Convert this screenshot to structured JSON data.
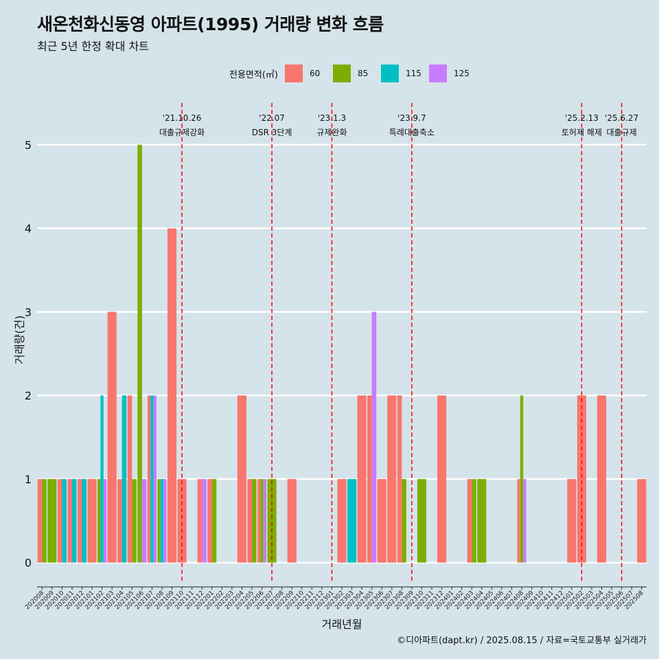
{
  "title": "새온천화신동영 아파트(1995) 거래량 변화 흐름",
  "subtitle": "최근 5년 한정 확대 차트",
  "caption": "©디아파트(dapt.kr) / 2025.08.15 / 자료=국토교통부 실거래가",
  "legend": {
    "title": "전용면적(㎡)",
    "items": [
      {
        "label": "60",
        "color": "#f8766d"
      },
      {
        "label": "85",
        "color": "#7cae00"
      },
      {
        "label": "115",
        "color": "#00bfc4"
      },
      {
        "label": "125",
        "color": "#c77cff"
      }
    ]
  },
  "chart_data": {
    "type": "bar",
    "xlabel": "거래년월",
    "ylabel": "거래량(건)",
    "ylim": [
      0,
      5
    ],
    "yticks": [
      0,
      1,
      2,
      3,
      4,
      5
    ],
    "grid": true,
    "legend_position": "top",
    "categories": [
      "202008",
      "202009",
      "202010",
      "202011",
      "202012",
      "202101",
      "202102",
      "202103",
      "202104",
      "202105",
      "202106",
      "202107",
      "202108",
      "202109",
      "202110",
      "202111",
      "202112",
      "202201",
      "202202",
      "202203",
      "202204",
      "202205",
      "202206",
      "202207",
      "202208",
      "202209",
      "202210",
      "202211",
      "202212",
      "202301",
      "202302",
      "202303",
      "202304",
      "202305",
      "202306",
      "202307",
      "202308",
      "202309",
      "202310",
      "202311",
      "202312",
      "202401",
      "202402",
      "202403",
      "202404",
      "202405",
      "202406",
      "202407",
      "202408",
      "202409",
      "202410",
      "202411",
      "202412",
      "202501",
      "202502",
      "202503",
      "202504",
      "202505",
      "202506",
      "202507",
      "202508"
    ],
    "series": [
      {
        "name": "60",
        "color": "#f8766d",
        "values": [
          1,
          0,
          1,
          1,
          1,
          1,
          0,
          3,
          1,
          2,
          0,
          2,
          0,
          4,
          1,
          0,
          1,
          1,
          0,
          0,
          2,
          1,
          1,
          0,
          0,
          1,
          0,
          0,
          0,
          0,
          1,
          0,
          2,
          2,
          1,
          2,
          2,
          0,
          0,
          0,
          2,
          0,
          0,
          1,
          0,
          0,
          0,
          0,
          1,
          0,
          0,
          0,
          0,
          1,
          2,
          0,
          2,
          0,
          0,
          0,
          1
        ]
      },
      {
        "name": "85",
        "color": "#7cae00",
        "values": [
          1,
          1,
          0,
          0,
          0,
          0,
          1,
          0,
          0,
          1,
          5,
          0,
          1,
          0,
          0,
          0,
          0,
          1,
          0,
          0,
          0,
          1,
          1,
          1,
          0,
          0,
          0,
          0,
          0,
          0,
          0,
          0,
          0,
          0,
          0,
          0,
          1,
          0,
          1,
          0,
          0,
          0,
          0,
          1,
          1,
          0,
          0,
          0,
          2,
          0,
          0,
          0,
          0,
          0,
          0,
          0,
          0,
          0,
          0,
          0,
          0
        ]
      },
      {
        "name": "115",
        "color": "#00bfc4",
        "values": [
          0,
          0,
          1,
          1,
          1,
          0,
          2,
          0,
          2,
          0,
          0,
          2,
          1,
          0,
          0,
          0,
          0,
          0,
          0,
          0,
          0,
          0,
          0,
          0,
          0,
          0,
          0,
          0,
          0,
          0,
          0,
          1,
          0,
          0,
          0,
          0,
          0,
          0,
          0,
          0,
          0,
          0,
          0,
          0,
          0,
          0,
          0,
          0,
          0,
          0,
          0,
          0,
          0,
          0,
          0,
          0,
          0,
          0,
          0,
          0,
          0
        ]
      },
      {
        "name": "125",
        "color": "#c77cff",
        "values": [
          0,
          0,
          0,
          0,
          0,
          0,
          1,
          0,
          0,
          0,
          1,
          2,
          1,
          0,
          0,
          0,
          1,
          0,
          0,
          0,
          0,
          0,
          1,
          0,
          0,
          0,
          0,
          0,
          0,
          0,
          0,
          0,
          0,
          3,
          0,
          0,
          0,
          0,
          0,
          0,
          0,
          0,
          0,
          0,
          0,
          0,
          0,
          0,
          1,
          0,
          0,
          0,
          0,
          0,
          0,
          0,
          0,
          0,
          0,
          0,
          0
        ]
      }
    ],
    "annotations": [
      {
        "category": "202110",
        "date": "'21.10.26",
        "label": "대출규제강화"
      },
      {
        "category": "202207",
        "date": "'22.07",
        "label": "DSR 3단계"
      },
      {
        "category": "202301",
        "date": "'23.1.3",
        "label": "규제완화"
      },
      {
        "category": "202309",
        "date": "'23.9.7",
        "label": "특례대출축소"
      },
      {
        "category": "202502",
        "date": "'25.2.13",
        "label": "토허제 해제"
      },
      {
        "category": "202506",
        "date": "'25.6.27",
        "label": "대출규제"
      }
    ]
  }
}
